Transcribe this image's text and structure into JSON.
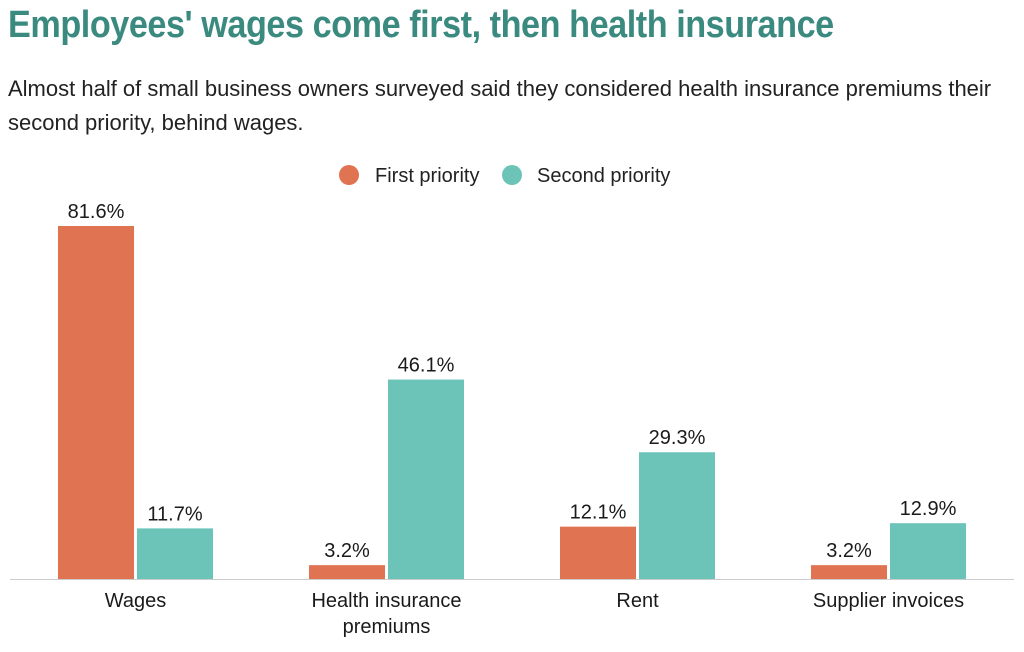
{
  "header": {
    "title": "Employees' wages come first, then health insurance",
    "subtitle": "Almost half of small business owners surveyed said they considered health insurance premiums their second priority, behind wages."
  },
  "colors": {
    "title": "#3a8a7f",
    "first": "#e07352",
    "second": "#6cc3b8",
    "axis": "#cccccc"
  },
  "chart_data": {
    "type": "bar",
    "title": "Employees' wages come first, then health insurance",
    "xlabel": "",
    "ylabel": "",
    "ylim": [
      0,
      81.6
    ],
    "grid": false,
    "legend_position": "top-center",
    "categories": [
      [
        "Wages"
      ],
      [
        "Health insurance",
        "premiums"
      ],
      [
        "Rent"
      ],
      [
        "Supplier invoices"
      ]
    ],
    "series": [
      {
        "name": "First priority",
        "values": [
          81.6,
          3.2,
          12.1,
          3.2
        ],
        "labels": [
          "81.6%",
          "3.2%",
          "12.1%",
          "3.2%"
        ]
      },
      {
        "name": "Second priority",
        "values": [
          11.7,
          46.1,
          29.3,
          12.9
        ],
        "labels": [
          "11.7%",
          "46.1%",
          "29.3%",
          "12.9%"
        ]
      }
    ]
  }
}
